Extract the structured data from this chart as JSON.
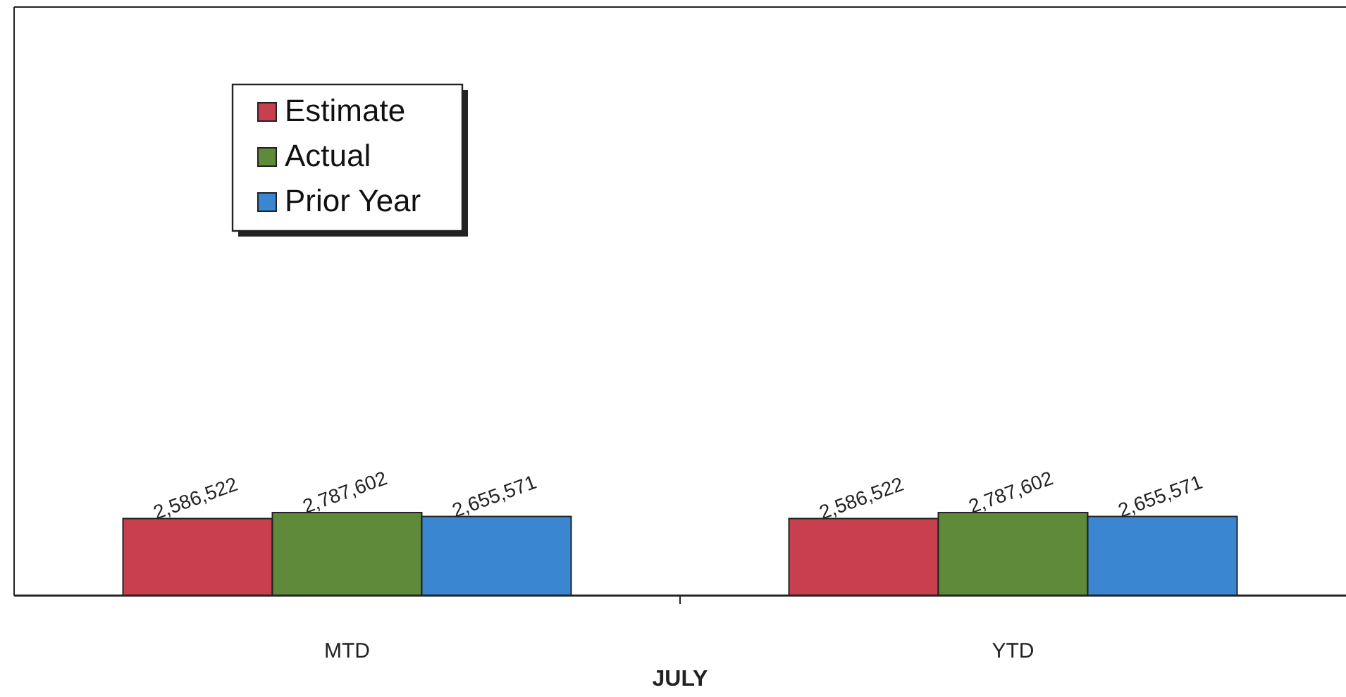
{
  "chart_data": {
    "type": "bar",
    "xlabel": "JULY",
    "categories": [
      "MTD",
      "YTD"
    ],
    "series": [
      {
        "name": "Estimate",
        "color": "#c8404f",
        "values": [
          2586522,
          2586522
        ],
        "value_labels": [
          "2,586,522",
          "2,586,522"
        ]
      },
      {
        "name": "Actual",
        "color": "#5e8a3a",
        "values": [
          2787602,
          2787602
        ],
        "value_labels": [
          "2,787,602",
          "2,787,602"
        ]
      },
      {
        "name": "Prior Year",
        "color": "#3a86d0",
        "values": [
          2655571,
          2655571
        ],
        "value_labels": [
          "2,655,571",
          "2,655,571"
        ]
      }
    ],
    "tick_labels": "x",
    "legend": "top left"
  }
}
